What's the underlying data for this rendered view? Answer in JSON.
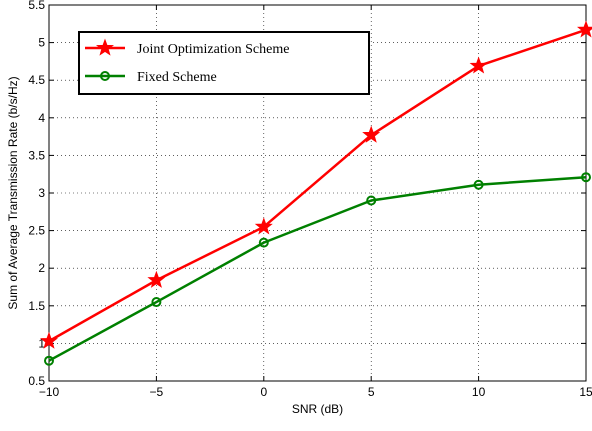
{
  "chart_data": {
    "type": "line",
    "title": "",
    "xlabel": "SNR (dB)",
    "ylabel": "Sum of Average Transmission Rate (b/s/Hz)",
    "xlim": [
      -10,
      15
    ],
    "ylim": [
      0.5,
      5.5
    ],
    "x": [
      -10,
      -5,
      0,
      5,
      10,
      15
    ],
    "xticks": [
      -10,
      -5,
      0,
      5,
      10,
      15
    ],
    "xtick_labels": [
      "−10",
      "−5",
      "0",
      "5",
      "10",
      "15"
    ],
    "yticks": [
      0.5,
      1,
      1.5,
      2,
      2.5,
      3,
      3.5,
      4,
      4.5,
      5,
      5.5
    ],
    "ytick_labels": [
      "0.5",
      "1",
      "1.5",
      "2",
      "2.5",
      "3",
      "3.5",
      "4",
      "4.5",
      "5",
      "5.5"
    ],
    "grid": true,
    "grid_style": "dotted",
    "legend_position": "top-left",
    "series": [
      {
        "name": "Joint Optimization Scheme",
        "values": [
          1.03,
          1.84,
          2.55,
          3.77,
          4.69,
          5.17
        ],
        "color": "#ff0000",
        "marker": "star"
      },
      {
        "name": "Fixed Scheme",
        "values": [
          0.77,
          1.55,
          2.34,
          2.9,
          3.11,
          3.21
        ],
        "color": "#008000",
        "marker": "circle"
      }
    ]
  }
}
